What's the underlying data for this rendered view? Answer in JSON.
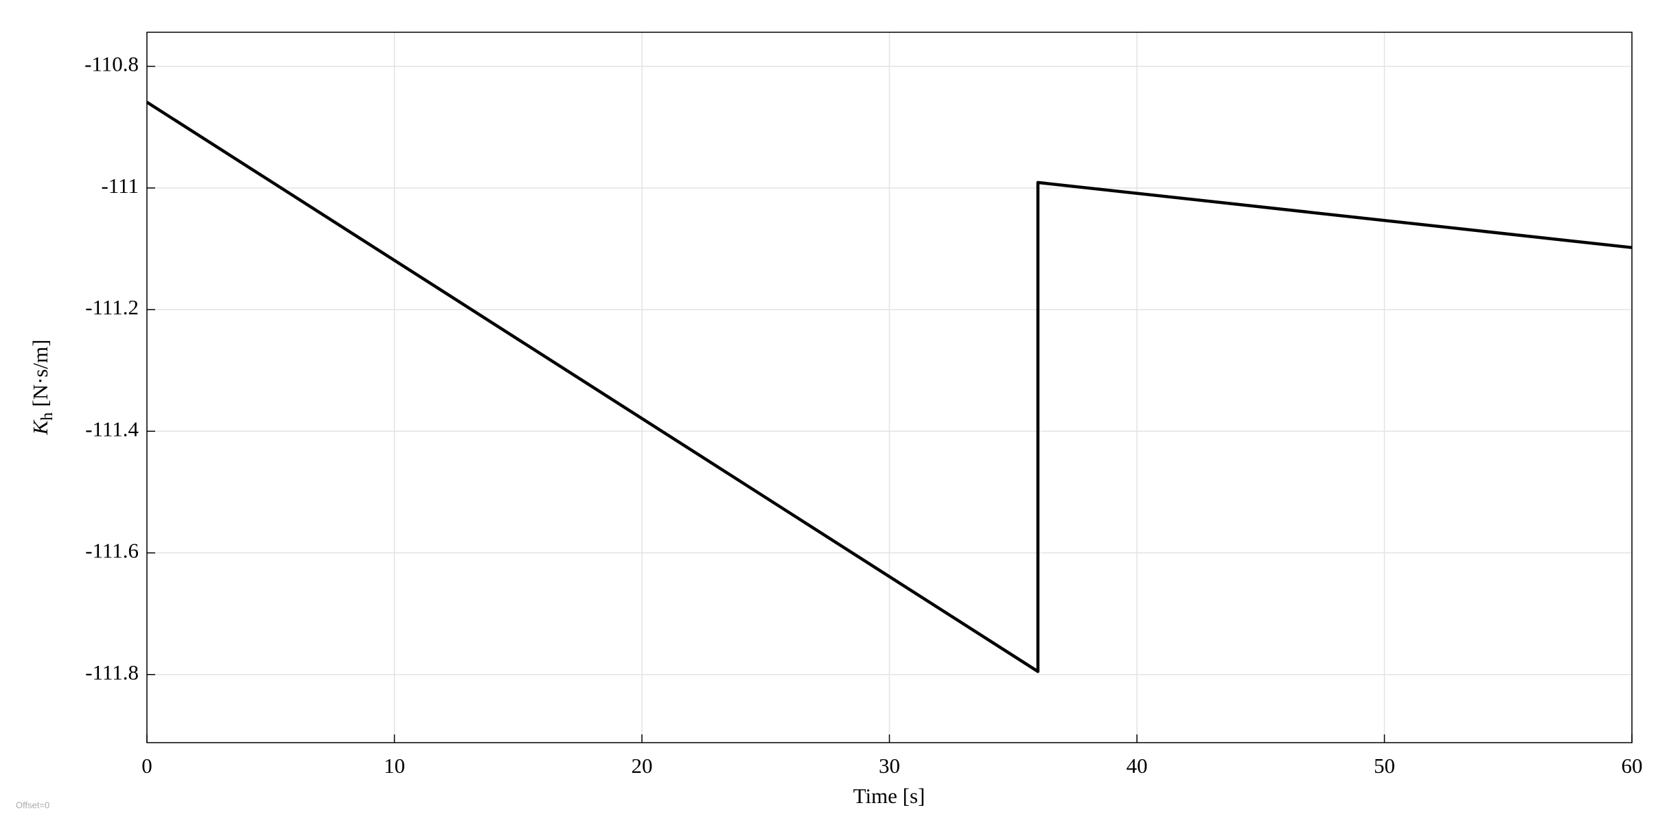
{
  "chart_data": {
    "type": "line",
    "x_label": "Time [s]",
    "y_label": {
      "symbol": "K",
      "subscript": "h",
      "unit": "[N·s/m]"
    },
    "annotation": "Offset=0",
    "x": [
      0,
      36,
      36,
      60
    ],
    "values": [
      -110.859,
      -111.795,
      -110.991,
      -111.098
    ],
    "color": "#000000",
    "xlim": [
      0,
      60
    ],
    "xticks": [
      0,
      10,
      20,
      30,
      40,
      50,
      60
    ],
    "ylim": [
      -111.912,
      -110.744
    ],
    "yticks": [
      -111.8,
      -111.6,
      -111.4,
      -111.2,
      -111,
      -110.8
    ],
    "grid": true
  }
}
